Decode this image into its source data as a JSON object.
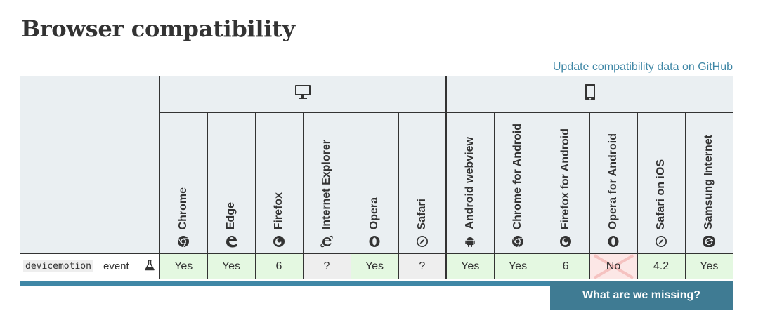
{
  "page": {
    "title": "Browser compatibility"
  },
  "github_link": "Update compatibility data on GitHub",
  "platforms": [
    {
      "name": "desktop",
      "icon": "desktop-icon"
    },
    {
      "name": "mobile",
      "icon": "mobile-icon"
    }
  ],
  "browsers": [
    {
      "name": "Chrome",
      "icon": "chrome-icon"
    },
    {
      "name": "Edge",
      "icon": "edge-icon"
    },
    {
      "name": "Firefox",
      "icon": "firefox-icon"
    },
    {
      "name": "Internet Explorer",
      "icon": "ie-icon"
    },
    {
      "name": "Opera",
      "icon": "opera-icon"
    },
    {
      "name": "Safari",
      "icon": "safari-icon"
    },
    {
      "name": "Android webview",
      "icon": "android-icon"
    },
    {
      "name": "Chrome for Android",
      "icon": "chrome-icon"
    },
    {
      "name": "Firefox for Android",
      "icon": "firefox-icon"
    },
    {
      "name": "Opera for Android",
      "icon": "opera-icon"
    },
    {
      "name": "Safari on iOS",
      "icon": "safari-icon"
    },
    {
      "name": "Samsung Internet",
      "icon": "samsung-internet-icon"
    }
  ],
  "feature_row": {
    "code": "devicemotion",
    "label": "event",
    "flag_icon": "experimental-flask-icon",
    "cells": [
      "Yes",
      "Yes",
      "6",
      "?",
      "Yes",
      "?",
      "Yes",
      "Yes",
      "6",
      "No",
      "4.2",
      "Yes"
    ],
    "status": [
      "yes",
      "yes",
      "yes",
      "unknown",
      "yes",
      "unknown",
      "yes",
      "yes",
      "yes",
      "no",
      "yes",
      "yes"
    ]
  },
  "missing_button": "What are we missing?",
  "colors": {
    "accent": "#3f87a6",
    "button": "#3f7b93",
    "yes_bg": "#e4f8e1",
    "no_bg": "#fce7e6",
    "unknown_bg": "#eeeeee",
    "header_bg": "#eaeff2"
  }
}
